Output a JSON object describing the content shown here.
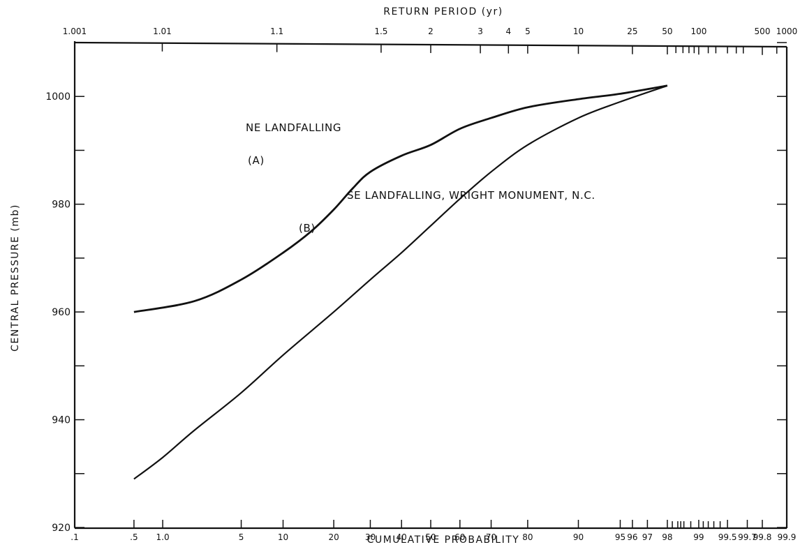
{
  "chart_data": {
    "type": "line",
    "title": "",
    "xlabel": "CUMULATIVE PROBABILITY",
    "x2label": "RETURN PERIOD (yr)",
    "ylabel": "CENTRAL PRESSURE (mb)",
    "x_scale": "normal-probability",
    "ylim": [
      920,
      1010
    ],
    "y_ticks": [
      920,
      940,
      960,
      980,
      1000
    ],
    "y_tick_labels": [
      "920",
      "940",
      "960",
      "980",
      "1000"
    ],
    "x_ticks": [
      0.1,
      0.5,
      1.0,
      5,
      10,
      20,
      30,
      40,
      50,
      60,
      70,
      80,
      90,
      95,
      96,
      97,
      98,
      99,
      99.5,
      99.7,
      99.8,
      99.9
    ],
    "x_tick_labels": [
      ".1",
      ".5",
      "1.0",
      "5",
      "10",
      "20",
      "30",
      "40",
      "50",
      "60",
      "70",
      "80",
      "90",
      "95",
      "96",
      "97",
      "98",
      "99",
      "99.5",
      "99.7",
      "99.8",
      "99.9"
    ],
    "top_ticks": [
      1.001,
      1.01,
      1.1,
      1.5,
      2,
      3,
      4,
      5,
      10,
      25,
      50,
      100,
      500,
      1000
    ],
    "top_tick_labels": [
      "1.001",
      "1.01",
      "1.1",
      "1.5",
      "2",
      "3",
      "4",
      "5",
      "10",
      "25",
      "50",
      "100",
      "500",
      "1000"
    ],
    "grid": false,
    "series": [
      {
        "label": "(A)",
        "annotation": "NE LANDFALLING",
        "x": [
          0.5,
          2,
          5,
          10,
          15,
          20,
          25,
          30,
          40,
          50,
          60,
          70,
          80,
          90,
          95,
          98
        ],
        "y": [
          960,
          962,
          966,
          971,
          975,
          979,
          983,
          986,
          989,
          991,
          994,
          996,
          998,
          999.5,
          1000.5,
          1002
        ]
      },
      {
        "label": "(B)",
        "annotation": "SE LANDFALLING, WRIGHT MONUMENT, N.C.",
        "x": [
          0.5,
          1.0,
          2,
          5,
          10,
          20,
          30,
          40,
          50,
          60,
          70,
          80,
          90,
          95,
          98
        ],
        "y": [
          929,
          933,
          938,
          945,
          952,
          960,
          966,
          971,
          976,
          981,
          986,
          991,
          996,
          999,
          1002
        ]
      }
    ]
  }
}
